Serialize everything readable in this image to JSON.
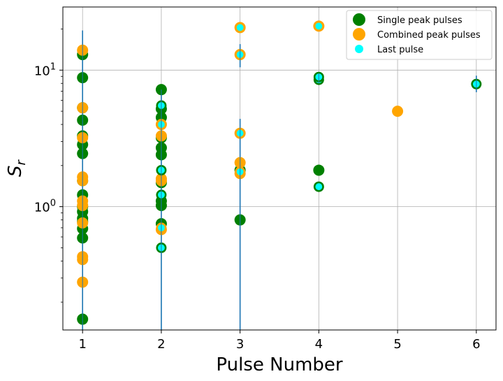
{
  "chart_data": {
    "type": "scatter",
    "title": "",
    "xlabel": "Pulse Number",
    "ylabel_base": "S",
    "ylabel_sub": "r",
    "yscale": "log",
    "xlim": [
      0.75,
      6.25
    ],
    "ylim": [
      0.125,
      29
    ],
    "x_ticks": [
      1,
      2,
      3,
      4,
      5,
      6
    ],
    "x_tick_labels": [
      "1",
      "2",
      "3",
      "4",
      "5",
      "6"
    ],
    "y_major_ticks": [
      1,
      10
    ],
    "y_tick_labels": [
      {
        "base": "10",
        "exp": "0"
      },
      {
        "base": "10",
        "exp": "1"
      }
    ],
    "grid": true,
    "legend_position": "top-right",
    "colors": {
      "single": "#008000",
      "combined": "#FFA500",
      "last": "#00FFFF",
      "errorbar": "#1f77b4",
      "grid": "#b0b0b0"
    },
    "series": [
      {
        "name": "Single peak pulses",
        "points": [
          [
            1,
            0.15
          ],
          [
            1,
            0.59
          ],
          [
            1,
            0.69
          ],
          [
            1,
            0.78
          ],
          [
            1,
            0.82
          ],
          [
            1,
            0.92
          ],
          [
            1,
            1.0
          ],
          [
            1,
            1.22
          ],
          [
            1,
            1.55
          ],
          [
            1,
            2.45
          ],
          [
            1,
            2.85
          ],
          [
            1,
            3.3
          ],
          [
            1,
            4.3
          ],
          [
            1,
            5.3
          ],
          [
            1,
            8.8
          ],
          [
            1,
            13.0
          ],
          [
            2,
            0.75
          ],
          [
            2,
            1.02
          ],
          [
            2,
            1.1
          ],
          [
            2,
            1.5
          ],
          [
            2,
            2.4
          ],
          [
            2,
            2.7
          ],
          [
            2,
            3.2
          ],
          [
            2,
            4.5
          ],
          [
            2,
            5.2
          ],
          [
            2,
            7.2
          ],
          [
            3,
            0.8
          ],
          [
            3,
            1.85
          ],
          [
            4,
            1.85
          ]
        ]
      },
      {
        "name": "Combined peak pulses",
        "points": [
          [
            1,
            0.28
          ],
          [
            1,
            0.41
          ],
          [
            1,
            0.43
          ],
          [
            1,
            0.76
          ],
          [
            1,
            1.02
          ],
          [
            1,
            1.1
          ],
          [
            1,
            1.55
          ],
          [
            1,
            1.65
          ],
          [
            1,
            3.2
          ],
          [
            1,
            5.3
          ],
          [
            1,
            14.0
          ],
          [
            2,
            0.68
          ],
          [
            2,
            1.55
          ],
          [
            2,
            1.6
          ],
          [
            2,
            3.3
          ],
          [
            2,
            4.0
          ],
          [
            3,
            1.75
          ],
          [
            3,
            2.1
          ],
          [
            3,
            3.45
          ],
          [
            3,
            13.0
          ],
          [
            3,
            20.5
          ],
          [
            4,
            21.0
          ],
          [
            5,
            5.0
          ]
        ]
      },
      {
        "name": "Last pulse",
        "points": [
          [
            2,
            0.5
          ],
          [
            2,
            0.7
          ],
          [
            2,
            1.22
          ],
          [
            2,
            1.85
          ],
          [
            2,
            4.0
          ],
          [
            2,
            5.5
          ],
          [
            3,
            1.8
          ],
          [
            3,
            3.45
          ],
          [
            3,
            13.0
          ],
          [
            3,
            20.5
          ],
          [
            4,
            1.4
          ],
          [
            4,
            8.5
          ],
          [
            4,
            8.9
          ],
          [
            4,
            21.0
          ],
          [
            6,
            7.9
          ]
        ]
      }
    ],
    "error_bars": [
      {
        "x": 1,
        "low": 0.125,
        "high": 19.5
      },
      {
        "x": 2,
        "low": 0.125,
        "high": 7.2
      },
      {
        "x": 3,
        "low": 0.125,
        "high": 4.4
      },
      {
        "x": 3,
        "low": 10.5,
        "high": 15.5
      },
      {
        "x": 4,
        "low": 8.0,
        "high": 9.5
      },
      {
        "x": 6,
        "low": 6.9,
        "high": 9.1
      }
    ]
  }
}
